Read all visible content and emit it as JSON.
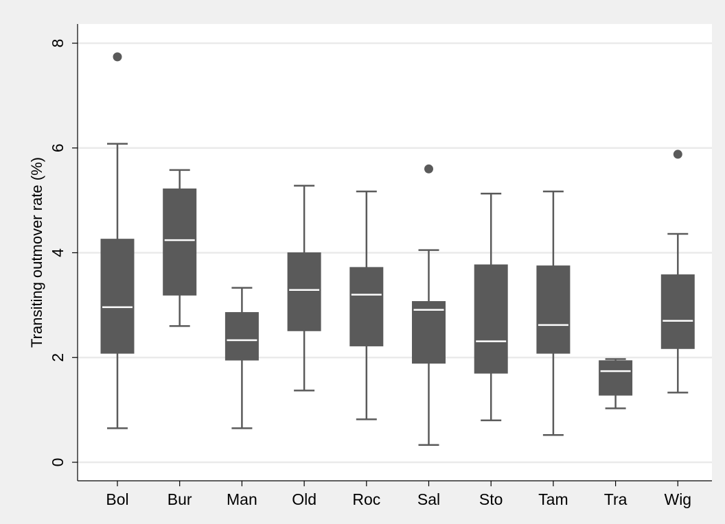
{
  "chart_data": {
    "type": "box",
    "title": "",
    "xlabel": "",
    "ylabel": "Transiting outmover rate (%)",
    "ylim": [
      -0.5,
      8.35
    ],
    "yticks": [
      0,
      2,
      4,
      6,
      8
    ],
    "ytick_labels": [
      "0",
      "2",
      "4",
      "6",
      "8"
    ],
    "grid": true,
    "legend": "none",
    "categories": [
      "Bol",
      "Bur",
      "Man",
      "Old",
      "Roc",
      "Sal",
      "Sto",
      "Tam",
      "Tra",
      "Wig"
    ],
    "boxes": [
      {
        "category": "Bol",
        "whisker_low": 0.65,
        "q1": 2.08,
        "median": 2.96,
        "q3": 4.26,
        "whisker_high": 6.08,
        "outliers": [
          7.74
        ]
      },
      {
        "category": "Bur",
        "whisker_low": 2.6,
        "q1": 3.19,
        "median": 4.24,
        "q3": 5.22,
        "whisker_high": 5.58,
        "outliers": []
      },
      {
        "category": "Man",
        "whisker_low": 0.65,
        "q1": 1.95,
        "median": 2.33,
        "q3": 2.86,
        "whisker_high": 3.33,
        "outliers": []
      },
      {
        "category": "Old",
        "whisker_low": 1.37,
        "q1": 2.51,
        "median": 3.29,
        "q3": 4.0,
        "whisker_high": 5.28,
        "outliers": []
      },
      {
        "category": "Roc",
        "whisker_low": 0.82,
        "q1": 2.22,
        "median": 3.2,
        "q3": 3.72,
        "whisker_high": 5.17,
        "outliers": []
      },
      {
        "category": "Sal",
        "whisker_low": 0.33,
        "q1": 1.89,
        "median": 2.91,
        "q3": 3.07,
        "whisker_high": 4.05,
        "outliers": [
          5.6
        ]
      },
      {
        "category": "Sto",
        "whisker_low": 0.8,
        "q1": 1.7,
        "median": 2.31,
        "q3": 3.77,
        "whisker_high": 5.13,
        "outliers": []
      },
      {
        "category": "Tam",
        "whisker_low": 0.52,
        "q1": 2.08,
        "median": 2.62,
        "q3": 3.75,
        "whisker_high": 5.17,
        "outliers": []
      },
      {
        "category": "Tra",
        "whisker_low": 1.03,
        "q1": 1.28,
        "median": 1.74,
        "q3": 1.94,
        "whisker_high": 1.97,
        "outliers": []
      },
      {
        "category": "Wig",
        "whisker_low": 1.33,
        "q1": 2.17,
        "median": 2.7,
        "q3": 3.58,
        "whisker_high": 4.36,
        "outliers": [
          5.88
        ]
      }
    ],
    "colors": {
      "page_background": "#f0f0f0",
      "plot_background": "#ffffff",
      "box_fill": "#5a5a5a",
      "whisker": "#5a5a5a",
      "median": "#ffffff",
      "outlier": "#5a5a5a",
      "grid": "#eaeaea",
      "axis": "#000000"
    }
  }
}
